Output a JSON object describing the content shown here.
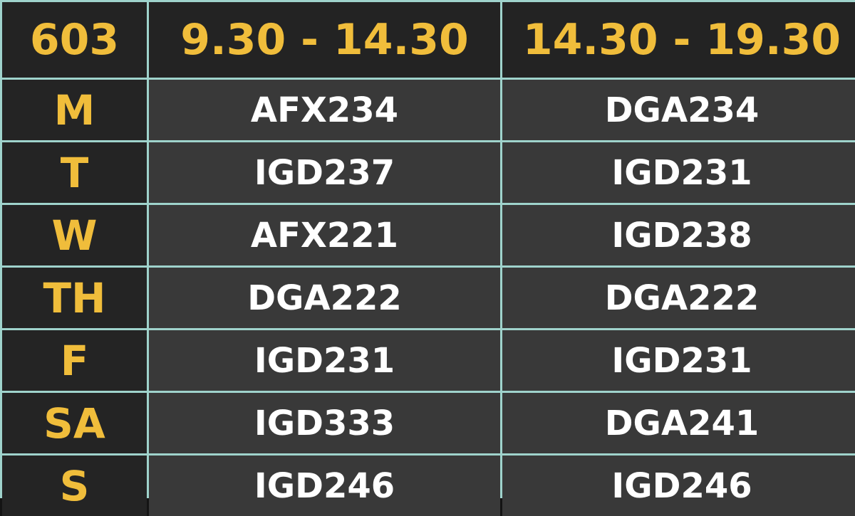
{
  "header": {
    "room": "603",
    "slots": [
      "9.30 - 14.30",
      "14.30 - 19.30"
    ]
  },
  "rows": [
    {
      "day": "M",
      "codes": [
        "AFX234",
        "DGA234"
      ]
    },
    {
      "day": "T",
      "codes": [
        "IGD237",
        "IGD231"
      ]
    },
    {
      "day": "W",
      "codes": [
        "AFX221",
        "IGD238"
      ]
    },
    {
      "day": "TH",
      "codes": [
        "DGA222",
        "DGA222"
      ]
    },
    {
      "day": "F",
      "codes": [
        "IGD231",
        "IGD231"
      ]
    },
    {
      "day": "SA",
      "codes": [
        "IGD333",
        "DGA241"
      ]
    },
    {
      "day": "S",
      "codes": [
        "IGD246",
        "IGD246"
      ]
    }
  ],
  "colors": {
    "accent": "#f0bd3b",
    "grid_line": "#9fd3cc",
    "header_bg": "#232323",
    "day_bg": "#242424",
    "cell_bg": "#393939",
    "code_text": "#ffffff"
  }
}
